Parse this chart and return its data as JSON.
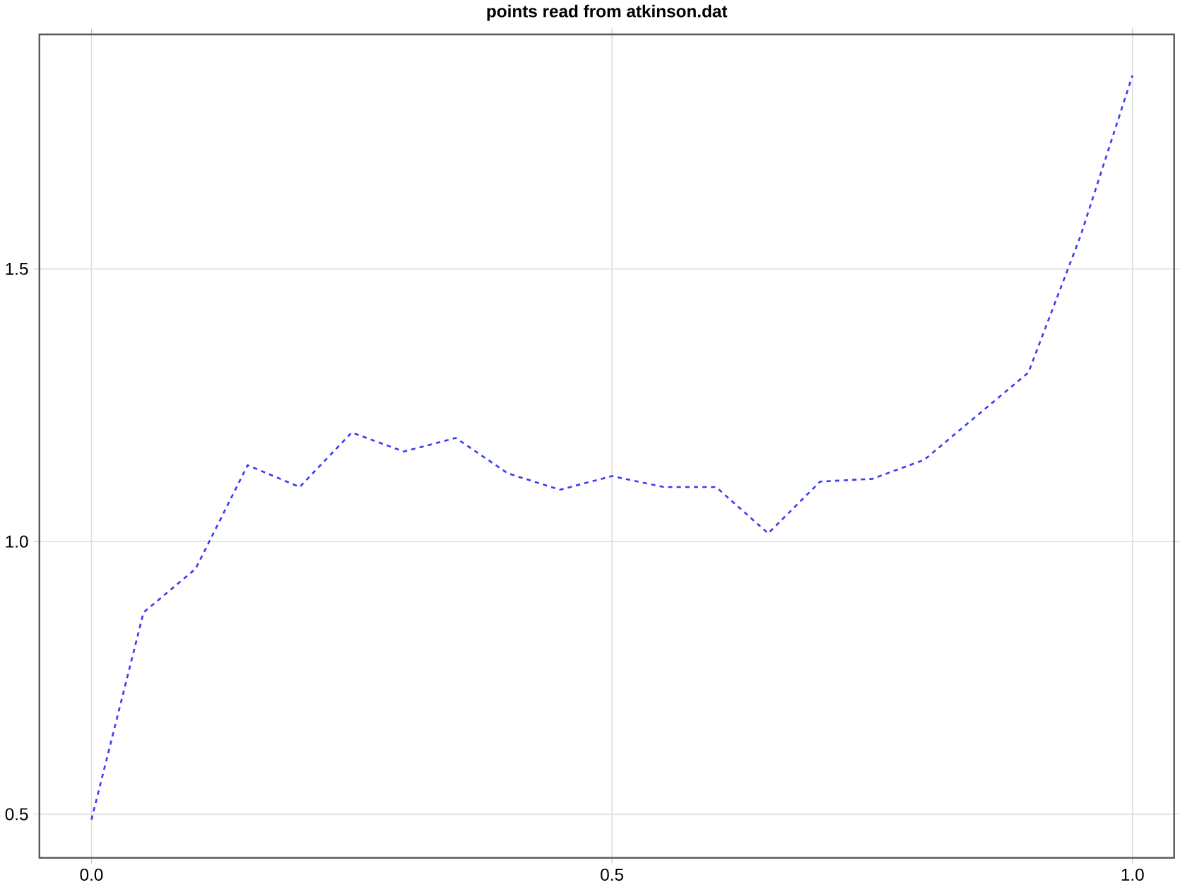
{
  "chart_data": {
    "type": "line",
    "title": "points read from atkinson.dat",
    "x": [
      0,
      0.05,
      0.1,
      0.15,
      0.2,
      0.25,
      0.3,
      0.35,
      0.4,
      0.45,
      0.5,
      0.55,
      0.6,
      0.65,
      0.7,
      0.75,
      0.8,
      0.85,
      0.9,
      0.95,
      1.0
    ],
    "series": [
      {
        "color": "#3b3bf5",
        "values": [
          0.49,
          0.87,
          0.95,
          1.14,
          1.1,
          1.2,
          1.165,
          1.19,
          1.125,
          1.095,
          1.12,
          1.1,
          1.1,
          1.015,
          1.11,
          1.115,
          1.15,
          1.23,
          1.31,
          1.56,
          1.855
        ]
      }
    ],
    "xlim": [
      -0.05,
      1.04
    ],
    "ylim": [
      0.42,
      1.93
    ],
    "xticks": [
      {
        "value": 0,
        "label": "0.0"
      },
      0.5,
      {
        "value": 1,
        "label": "1.0"
      }
    ],
    "yticks": [
      0.5,
      {
        "value": 1,
        "label": "1.0"
      },
      1.5
    ],
    "grid": true,
    "line_style": "dashed"
  }
}
